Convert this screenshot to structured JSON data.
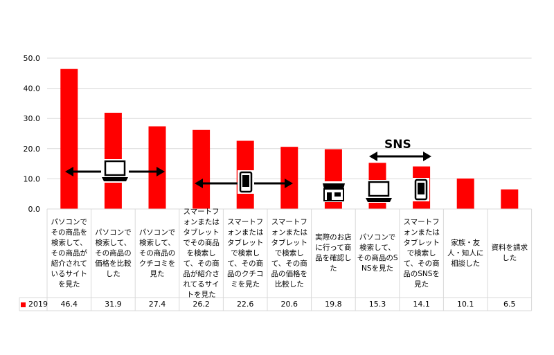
{
  "chart_data": {
    "type": "bar",
    "categories": [
      "パソコンでその商品を検索して、その商品が紹介されているサイトを見た",
      "パソコンで検索して、その商品の価格を比較した",
      "パソコンで検索して、その商品のクチコミを見た",
      "スマートフォンまたはタブレットでその商品を検索して、その商品が紹介されてるサイトを見た",
      "スマートフォンまたはタブレットで検索して、その商品のクチコミを見た",
      "スマートフォンまたはタブレットで検索して、その商品の価格を比較した",
      "実際のお店に行って商品を確認した",
      "パソコンで検索して、その商品のSNSを見た",
      "スマートフォンまたはタブレットで検索して、その商品のSNSを見た",
      "家族・友人・知人に相談した",
      "資料を請求した"
    ],
    "series": [
      {
        "name": "2019",
        "color": "#ff0000",
        "values": [
          46.4,
          31.9,
          27.4,
          26.2,
          22.6,
          20.6,
          19.8,
          15.3,
          14.1,
          10.1,
          6.5
        ]
      }
    ],
    "value_labels": [
      "46.4",
      "31.9",
      "27.4",
      "26.2",
      "22.6",
      "20.6",
      "19.8",
      "15.3",
      "14.1",
      "10.1",
      "6.5"
    ],
    "yticks": [
      "0.0",
      "10.0",
      "20.0",
      "30.0",
      "40.0",
      "50.0"
    ],
    "ylim": [
      0,
      50
    ],
    "grid": true,
    "legend": "table-left",
    "annotations": {
      "sns_label": "SNS",
      "icons": [
        "laptop-icon",
        "smartphone-icon",
        "store-icon",
        "laptop-icon",
        "smartphone-icon"
      ]
    }
  }
}
